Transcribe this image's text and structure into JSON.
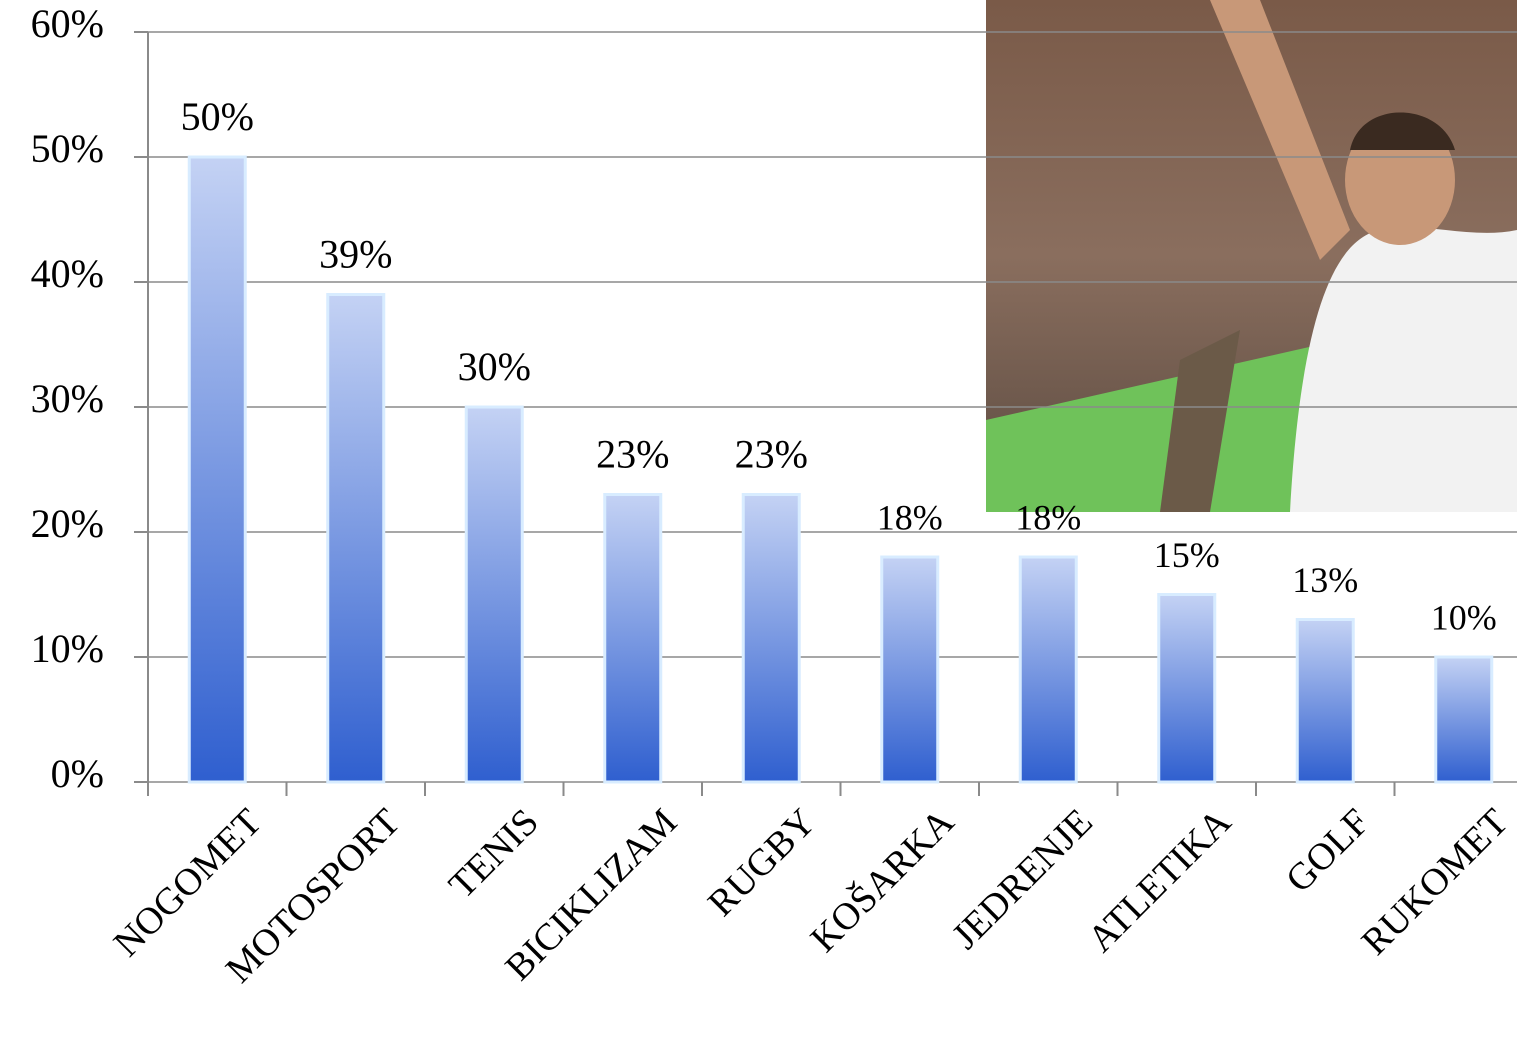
{
  "chart_data": {
    "type": "bar",
    "categories": [
      "NOGOMET",
      "MOTOSPORT",
      "TENIS",
      "BICIKLIZAM",
      "RUGBY",
      "KOŠARKA",
      "JEDRENJE",
      "ATLETIKA",
      "GOLF",
      "RUKOMET"
    ],
    "values": [
      50,
      39,
      30,
      23,
      23,
      18,
      18,
      15,
      13,
      10
    ],
    "value_labels": [
      "50%",
      "39%",
      "30%",
      "23%",
      "23%",
      "18%",
      "18%",
      "15%",
      "13%",
      "10%"
    ],
    "color": "#2f5fcf",
    "ylim": [
      0,
      60
    ],
    "yticks": [
      {
        "value": 0,
        "label": "0%"
      },
      {
        "value": 10,
        "label": "10%"
      },
      {
        "value": 20,
        "label": "20%"
      },
      {
        "value": 30,
        "label": "30%"
      },
      {
        "value": 40,
        "label": "40%"
      },
      {
        "value": 50,
        "label": "50%"
      },
      {
        "value": 60,
        "label": "60%"
      }
    ],
    "grid": true
  }
}
